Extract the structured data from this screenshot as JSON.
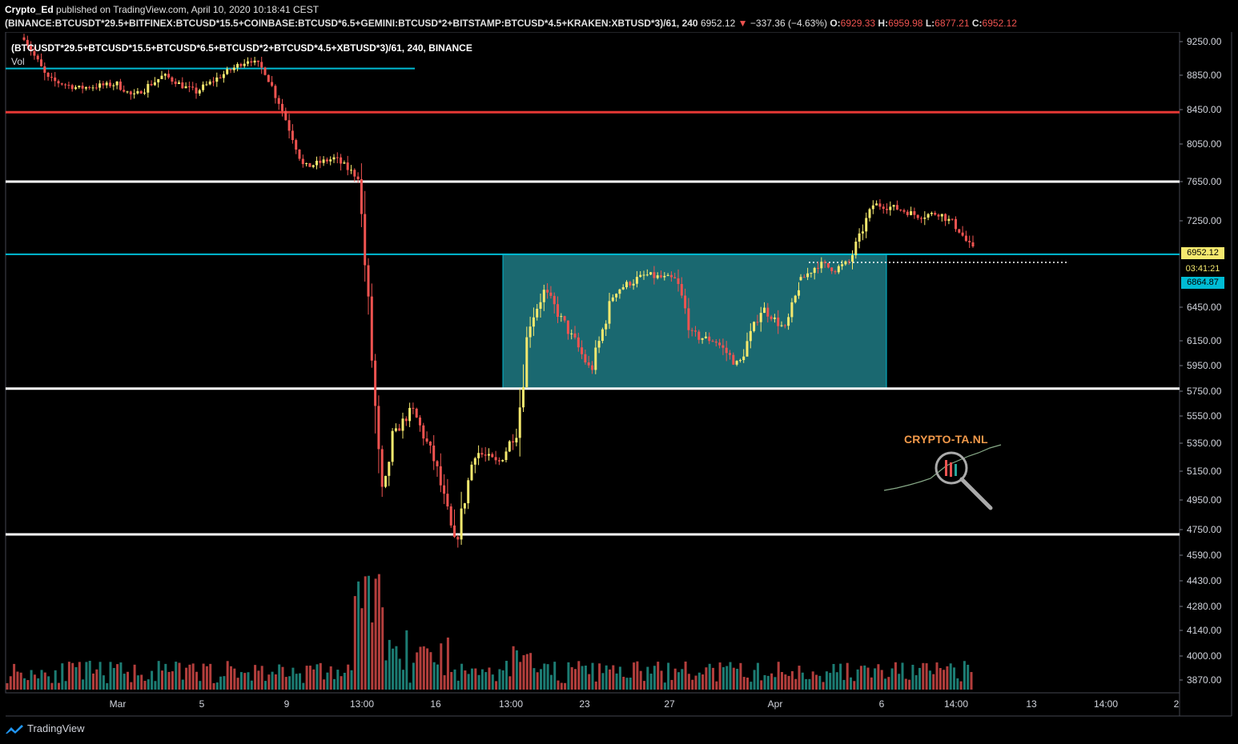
{
  "header": {
    "author": "Crypto_Ed",
    "published": "published on TradingView.com, April 10, 2020 10:18:41 CEST",
    "symbol": "(BINANCE:BTCUSDT*29.5+BITFINEX:BTCUSD*15.5+COINBASE:BTCUSD*6.5+GEMINI:BTCUSD*2+BITSTAMP:BTCUSD*4.5+KRAKEN:XBTUSD*3)/61, 240",
    "last": "6952.12",
    "change_arrow": "▼",
    "change": "−337.36 (−4.63%)",
    "o_label": "O:",
    "o": "6929.33",
    "h_label": "H:",
    "h": "6959.98",
    "l_label": "L:",
    "l": "6877.21",
    "c_label": "C:",
    "c": "6952.12"
  },
  "overlay": {
    "title": "(BTCUSDT*29.5+BTCUSD*15.5+BTCUSD*6.5+BTCUSD*2+BTCUSD*4.5+XBTUSD*3)/61, 240, BINANCE",
    "vol_label": "Vol"
  },
  "price_tags": {
    "last": "6952.12",
    "countdown": "03:41:21",
    "level": "6864.87"
  },
  "footer": {
    "brand": "TradingView"
  },
  "watermark": {
    "text": "CRYPTO-TA.NL"
  },
  "colors": {
    "up": "#f5e96e",
    "down": "#ef5350",
    "teal": "#00bcd4",
    "box": "#1f7a84",
    "resistance_red": "#e53935",
    "white": "#ffffff",
    "vol_up": "#26a69a",
    "vol_down": "#ef5350"
  },
  "chart_data": {
    "type": "candlestick",
    "ylim": [
      3800,
      9400
    ],
    "price_axis": {
      "ticks": [
        9250,
        8850,
        8450,
        8050,
        7650,
        7250,
        6450,
        6150,
        5950,
        5750,
        5550,
        5350,
        5150,
        4950,
        4750,
        4590,
        4430,
        4280,
        4140,
        4000,
        3870
      ],
      "labels": [
        "9250.00",
        "8850.00",
        "8450.00",
        "8050.00",
        "7650.00",
        "7250.00",
        "6450.00",
        "6150.00",
        "5950.00",
        "5750.00",
        "5550.00",
        "5350.00",
        "5150.00",
        "4950.00",
        "4750.00",
        "4590.00",
        "4430.00",
        "4280.00",
        "4140.00",
        "4000.00",
        "3870.00"
      ]
    },
    "time_axis": {
      "labels": [
        "Mar",
        "5",
        "9",
        "13:00",
        "16",
        "13:00",
        "23",
        "27",
        "Apr",
        "6",
        "14:00",
        "13",
        "14:00",
        "2"
      ]
    },
    "horizontal_levels": [
      {
        "price": 8930,
        "color": "#00bcd4",
        "partial": true
      },
      {
        "price": 8420,
        "color": "#e53935"
      },
      {
        "price": 7650,
        "color": "#ffffff"
      },
      {
        "price": 6940,
        "color": "#00bcd4"
      },
      {
        "price": 5770,
        "color": "#ffffff"
      },
      {
        "price": 4720,
        "color": "#ffffff"
      }
    ],
    "range_box": {
      "top": 6940,
      "bottom": 5770
    },
    "dotted_level": 6864.87,
    "price_path": [
      {
        "t": 0,
        "p": 9300
      },
      {
        "t": 0.03,
        "p": 8800
      },
      {
        "t": 0.07,
        "p": 8700
      },
      {
        "t": 0.12,
        "p": 8750
      },
      {
        "t": 0.14,
        "p": 8600
      },
      {
        "t": 0.18,
        "p": 8850
      },
      {
        "t": 0.22,
        "p": 8650
      },
      {
        "t": 0.26,
        "p": 8880
      },
      {
        "t": 0.29,
        "p": 9050
      },
      {
        "t": 0.31,
        "p": 8900
      },
      {
        "t": 0.33,
        "p": 8500
      },
      {
        "t": 0.36,
        "p": 7800
      },
      {
        "t": 0.4,
        "p": 7900
      },
      {
        "t": 0.43,
        "p": 7700
      },
      {
        "t": 0.45,
        "p": 5800
      },
      {
        "t": 0.46,
        "p": 4900
      },
      {
        "t": 0.475,
        "p": 5400
      },
      {
        "t": 0.5,
        "p": 5600
      },
      {
        "t": 0.53,
        "p": 5200
      },
      {
        "t": 0.555,
        "p": 4620
      },
      {
        "t": 0.58,
        "p": 5300
      },
      {
        "t": 0.61,
        "p": 5200
      },
      {
        "t": 0.635,
        "p": 5450
      },
      {
        "t": 0.65,
        "p": 6300
      },
      {
        "t": 0.67,
        "p": 6600
      },
      {
        "t": 0.7,
        "p": 6250
      },
      {
        "t": 0.73,
        "p": 5900
      },
      {
        "t": 0.76,
        "p": 6600
      },
      {
        "t": 0.8,
        "p": 6750
      },
      {
        "t": 0.84,
        "p": 6700
      },
      {
        "t": 0.86,
        "p": 6200
      },
      {
        "t": 0.89,
        "p": 6150
      },
      {
        "t": 0.92,
        "p": 5950
      },
      {
        "t": 0.95,
        "p": 6450
      },
      {
        "t": 0.98,
        "p": 6250
      },
      {
        "t": 1.0,
        "p": 6700
      }
    ],
    "price_path_2": [
      {
        "t": 0,
        "p": 6700
      },
      {
        "t": 0.1,
        "p": 6850
      },
      {
        "t": 0.2,
        "p": 6800
      },
      {
        "t": 0.28,
        "p": 6870
      },
      {
        "t": 0.34,
        "p": 7100
      },
      {
        "t": 0.42,
        "p": 7420
      },
      {
        "t": 0.55,
        "p": 7380
      },
      {
        "t": 0.68,
        "p": 7300
      },
      {
        "t": 0.8,
        "p": 7330
      },
      {
        "t": 0.9,
        "p": 7200
      },
      {
        "t": 1.0,
        "p": 6952
      }
    ]
  }
}
